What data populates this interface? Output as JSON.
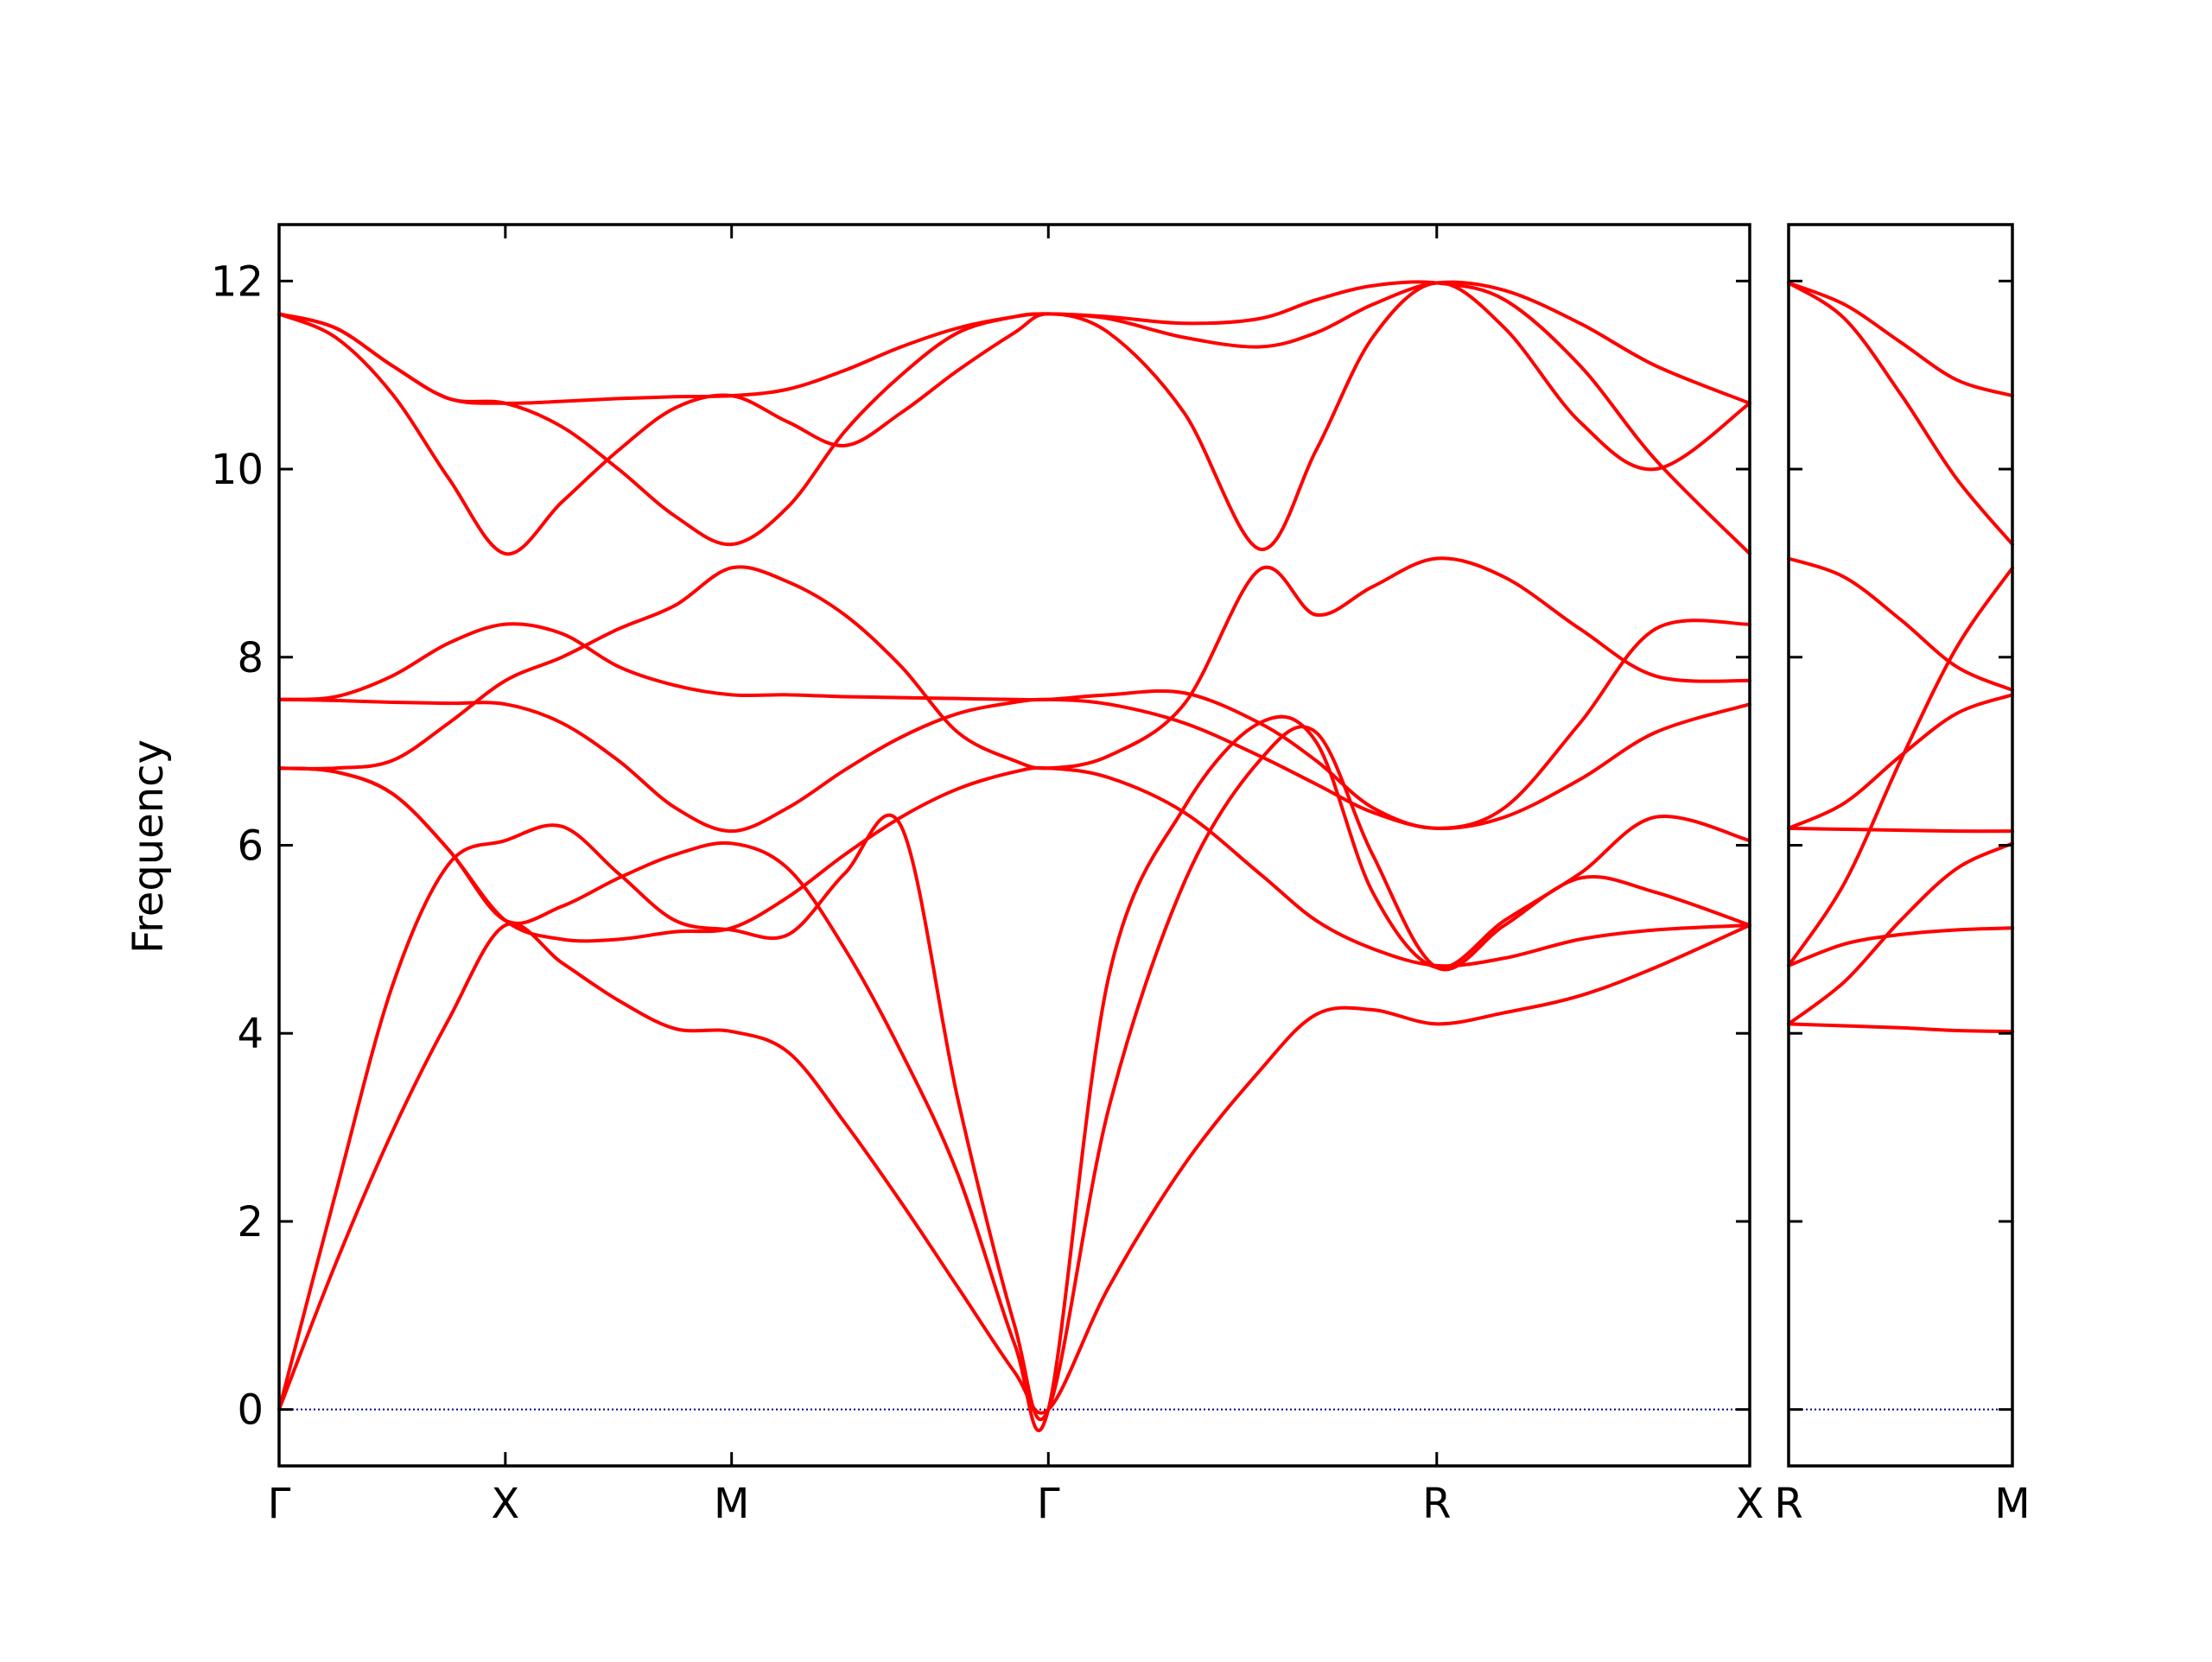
{
  "chart_data": {
    "type": "line",
    "title": "",
    "ylabel": "Frequency",
    "ylim": [
      -0.6,
      12.6
    ],
    "yticks": [
      0,
      2,
      4,
      6,
      8,
      10,
      12
    ],
    "line_color": "#ff0000",
    "zero_line_color": "#00008b",
    "panels": [
      {
        "xlim": [
          0,
          3.9
        ],
        "ticks": [
          {
            "pos": 0,
            "label": "Γ"
          },
          {
            "pos": 0.6,
            "label": "X"
          },
          {
            "pos": 1.2,
            "label": "M"
          },
          {
            "pos": 2.04,
            "label": "Γ"
          },
          {
            "pos": 3.07,
            "label": "R"
          },
          {
            "pos": 3.9,
            "label": "X"
          }
        ],
        "bands": [
          {
            "x": [
              0,
              0.15,
              0.3,
              0.45,
              0.6,
              0.75,
              0.9,
              1.05,
              1.2,
              1.35,
              1.5,
              1.65,
              1.8,
              1.95,
              2.04,
              2.2,
              2.4,
              2.6,
              2.75,
              2.9,
              3.07,
              3.25,
              3.45,
              3.65,
              3.9
            ],
            "y": [
              0,
              1.55,
              2.95,
              4.15,
              5.15,
              4.75,
              4.35,
              4.05,
              4.02,
              3.8,
              3.05,
              2.2,
              1.3,
              0.4,
              0,
              1.3,
              2.6,
              3.6,
              4.2,
              4.25,
              4.1,
              4.22,
              4.4,
              4.7,
              5.15
            ]
          },
          {
            "x": [
              0,
              0.15,
              0.3,
              0.45,
              0.6,
              0.75,
              0.9,
              1.05,
              1.2,
              1.35,
              1.5,
              1.65,
              1.8,
              1.95,
              2.04,
              2.2,
              2.4,
              2.6,
              2.75,
              2.9,
              3.07,
              3.25,
              3.45,
              3.65,
              3.9
            ],
            "y": [
              0,
              2.3,
              4.5,
              5.8,
              6.05,
              6.2,
              5.7,
              5.2,
              5.1,
              5.05,
              5.7,
              6.2,
              3.3,
              0.9,
              0,
              3.2,
              5.6,
              6.9,
              7.2,
              5.9,
              4.7,
              5.15,
              5.65,
              5.5,
              5.15
            ]
          },
          {
            "x": [
              0,
              0.15,
              0.3,
              0.45,
              0.6,
              0.75,
              0.9,
              1.05,
              1.2,
              1.35,
              1.5,
              1.65,
              1.8,
              1.95,
              2.04,
              2.2,
              2.4,
              2.6,
              2.75,
              2.9,
              3.07,
              3.25,
              3.45,
              3.65,
              3.9
            ],
            "y": [
              6.82,
              6.78,
              6.55,
              5.95,
              5.2,
              5.35,
              5.65,
              5.9,
              6.02,
              5.75,
              4.9,
              3.8,
              2.5,
              0.7,
              0,
              4.6,
              6.4,
              7.3,
              7.1,
              5.5,
              4.7,
              5.2,
              5.7,
              6.3,
              6.05
            ]
          },
          {
            "x": [
              0,
              0.15,
              0.3,
              0.45,
              0.6,
              0.75,
              0.9,
              1.05,
              1.2,
              1.35,
              1.5,
              1.65,
              1.8,
              1.95,
              2.04,
              2.2,
              2.4,
              2.6,
              2.75,
              2.9,
              3.07,
              3.25,
              3.45,
              3.65,
              3.9
            ],
            "y": [
              6.82,
              6.78,
              6.55,
              5.95,
              5.2,
              5.0,
              5.0,
              5.08,
              5.12,
              5.45,
              5.9,
              6.3,
              6.6,
              6.78,
              6.82,
              6.72,
              6.35,
              5.7,
              5.2,
              4.9,
              4.72,
              4.8,
              5.0,
              5.1,
              5.15
            ]
          },
          {
            "x": [
              0,
              0.15,
              0.3,
              0.45,
              0.6,
              0.75,
              0.9,
              1.05,
              1.2,
              1.35,
              1.5,
              1.65,
              1.8,
              1.95,
              2.04,
              2.2,
              2.4,
              2.6,
              2.75,
              2.9,
              3.07,
              3.25,
              3.45,
              3.65,
              3.9
            ],
            "y": [
              6.82,
              6.82,
              6.9,
              7.3,
              7.75,
              8.0,
              8.3,
              8.55,
              8.95,
              8.8,
              8.45,
              7.9,
              7.2,
              6.9,
              6.82,
              6.95,
              7.5,
              8.93,
              8.45,
              8.75,
              9.05,
              8.85,
              8.3,
              7.8,
              7.75
            ]
          },
          {
            "x": [
              0,
              0.15,
              0.3,
              0.45,
              0.6,
              0.75,
              0.9,
              1.05,
              1.2,
              1.35,
              1.5,
              1.65,
              1.8,
              1.95,
              2.04,
              2.2,
              2.4,
              2.6,
              2.75,
              2.9,
              3.07,
              3.25,
              3.45,
              3.65,
              3.9
            ],
            "y": [
              7.55,
              7.54,
              7.52,
              7.51,
              7.5,
              7.3,
              6.9,
              6.4,
              6.15,
              6.4,
              6.8,
              7.15,
              7.4,
              7.52,
              7.55,
              7.5,
              7.3,
              6.95,
              6.65,
              6.35,
              6.18,
              6.3,
              6.7,
              7.2,
              7.5
            ]
          },
          {
            "x": [
              0,
              0.15,
              0.3,
              0.45,
              0.6,
              0.75,
              0.9,
              1.05,
              1.2,
              1.35,
              1.5,
              1.65,
              1.8,
              1.95,
              2.04,
              2.2,
              2.4,
              2.6,
              2.75,
              2.9,
              3.07,
              3.25,
              3.45,
              3.65,
              3.9
            ],
            "y": [
              7.55,
              7.58,
              7.8,
              8.15,
              8.35,
              8.25,
              7.9,
              7.7,
              7.6,
              7.6,
              7.58,
              7.57,
              7.56,
              7.55,
              7.55,
              7.6,
              7.62,
              7.3,
              6.9,
              6.4,
              6.18,
              6.4,
              7.3,
              8.3,
              8.35
            ]
          },
          {
            "x": [
              0,
              0.15,
              0.3,
              0.45,
              0.6,
              0.75,
              0.9,
              1.05,
              1.2,
              1.35,
              1.5,
              1.65,
              1.8,
              1.95,
              2.04,
              2.2,
              2.4,
              2.6,
              2.75,
              2.9,
              3.07,
              3.25,
              3.45,
              3.65,
              3.9
            ],
            "y": [
              11.65,
              11.4,
              10.8,
              9.9,
              9.1,
              9.65,
              10.2,
              10.65,
              10.78,
              10.5,
              10.25,
              10.6,
              11.05,
              11.45,
              11.65,
              11.45,
              10.6,
              9.15,
              10.2,
              11.4,
              11.98,
              11.5,
              10.5,
              10.0,
              10.7
            ]
          },
          {
            "x": [
              0,
              0.15,
              0.3,
              0.45,
              0.6,
              0.75,
              0.9,
              1.05,
              1.2,
              1.35,
              1.5,
              1.65,
              1.8,
              1.95,
              2.04,
              2.2,
              2.4,
              2.6,
              2.75,
              2.9,
              3.07,
              3.25,
              3.45,
              3.65,
              3.9
            ],
            "y": [
              11.65,
              11.5,
              11.1,
              10.75,
              10.7,
              10.45,
              10.0,
              9.5,
              9.2,
              9.6,
              10.4,
              11.0,
              11.45,
              11.62,
              11.65,
              11.62,
              11.55,
              11.6,
              11.8,
              11.95,
              11.98,
              11.8,
              11.1,
              10.1,
              9.1
            ]
          },
          {
            "x": [
              0,
              0.15,
              0.3,
              0.45,
              0.6,
              0.75,
              0.9,
              1.05,
              1.2,
              1.35,
              1.5,
              1.65,
              1.8,
              1.95,
              2.04,
              2.2,
              2.4,
              2.6,
              2.75,
              2.9,
              3.07,
              3.25,
              3.45,
              3.65,
              3.9
            ],
            "y": [
              11.65,
              11.5,
              11.1,
              10.75,
              10.7,
              10.72,
              10.75,
              10.77,
              10.78,
              10.85,
              11.05,
              11.3,
              11.5,
              11.62,
              11.65,
              11.6,
              11.4,
              11.3,
              11.45,
              11.75,
              11.98,
              11.9,
              11.55,
              11.1,
              10.7
            ]
          }
        ]
      },
      {
        "xlim": [
          0,
          0.6
        ],
        "ticks": [
          {
            "pos": 0,
            "label": "R"
          },
          {
            "pos": 0.6,
            "label": "M"
          }
        ],
        "bands": [
          {
            "x": [
              0,
              0.15,
              0.3,
              0.45,
              0.6
            ],
            "y": [
              4.1,
              4.08,
              4.06,
              4.03,
              4.02
            ]
          },
          {
            "x": [
              0,
              0.15,
              0.3,
              0.45,
              0.6
            ],
            "y": [
              4.72,
              4.95,
              5.05,
              5.1,
              5.12
            ]
          },
          {
            "x": [
              0,
              0.15,
              0.3,
              0.45,
              0.6
            ],
            "y": [
              4.1,
              4.55,
              5.2,
              5.75,
              6.02
            ]
          },
          {
            "x": [
              0,
              0.15,
              0.3,
              0.45,
              0.6
            ],
            "y": [
              6.18,
              6.17,
              6.16,
              6.15,
              6.15
            ]
          },
          {
            "x": [
              0,
              0.15,
              0.3,
              0.45,
              0.6
            ],
            "y": [
              4.72,
              5.6,
              6.9,
              8.1,
              8.95
            ]
          },
          {
            "x": [
              0,
              0.15,
              0.3,
              0.45,
              0.6
            ],
            "y": [
              6.18,
              6.45,
              6.95,
              7.4,
              7.6
            ]
          },
          {
            "x": [
              0,
              0.15,
              0.3,
              0.45,
              0.6
            ],
            "y": [
              9.05,
              8.85,
              8.4,
              7.9,
              7.65
            ]
          },
          {
            "x": [
              0,
              0.15,
              0.3,
              0.45,
              0.6
            ],
            "y": [
              11.98,
              11.6,
              10.8,
              9.9,
              9.2
            ]
          },
          {
            "x": [
              0,
              0.15,
              0.3,
              0.45,
              0.6
            ],
            "y": [
              11.98,
              11.75,
              11.35,
              10.95,
              10.78
            ]
          }
        ]
      }
    ]
  }
}
